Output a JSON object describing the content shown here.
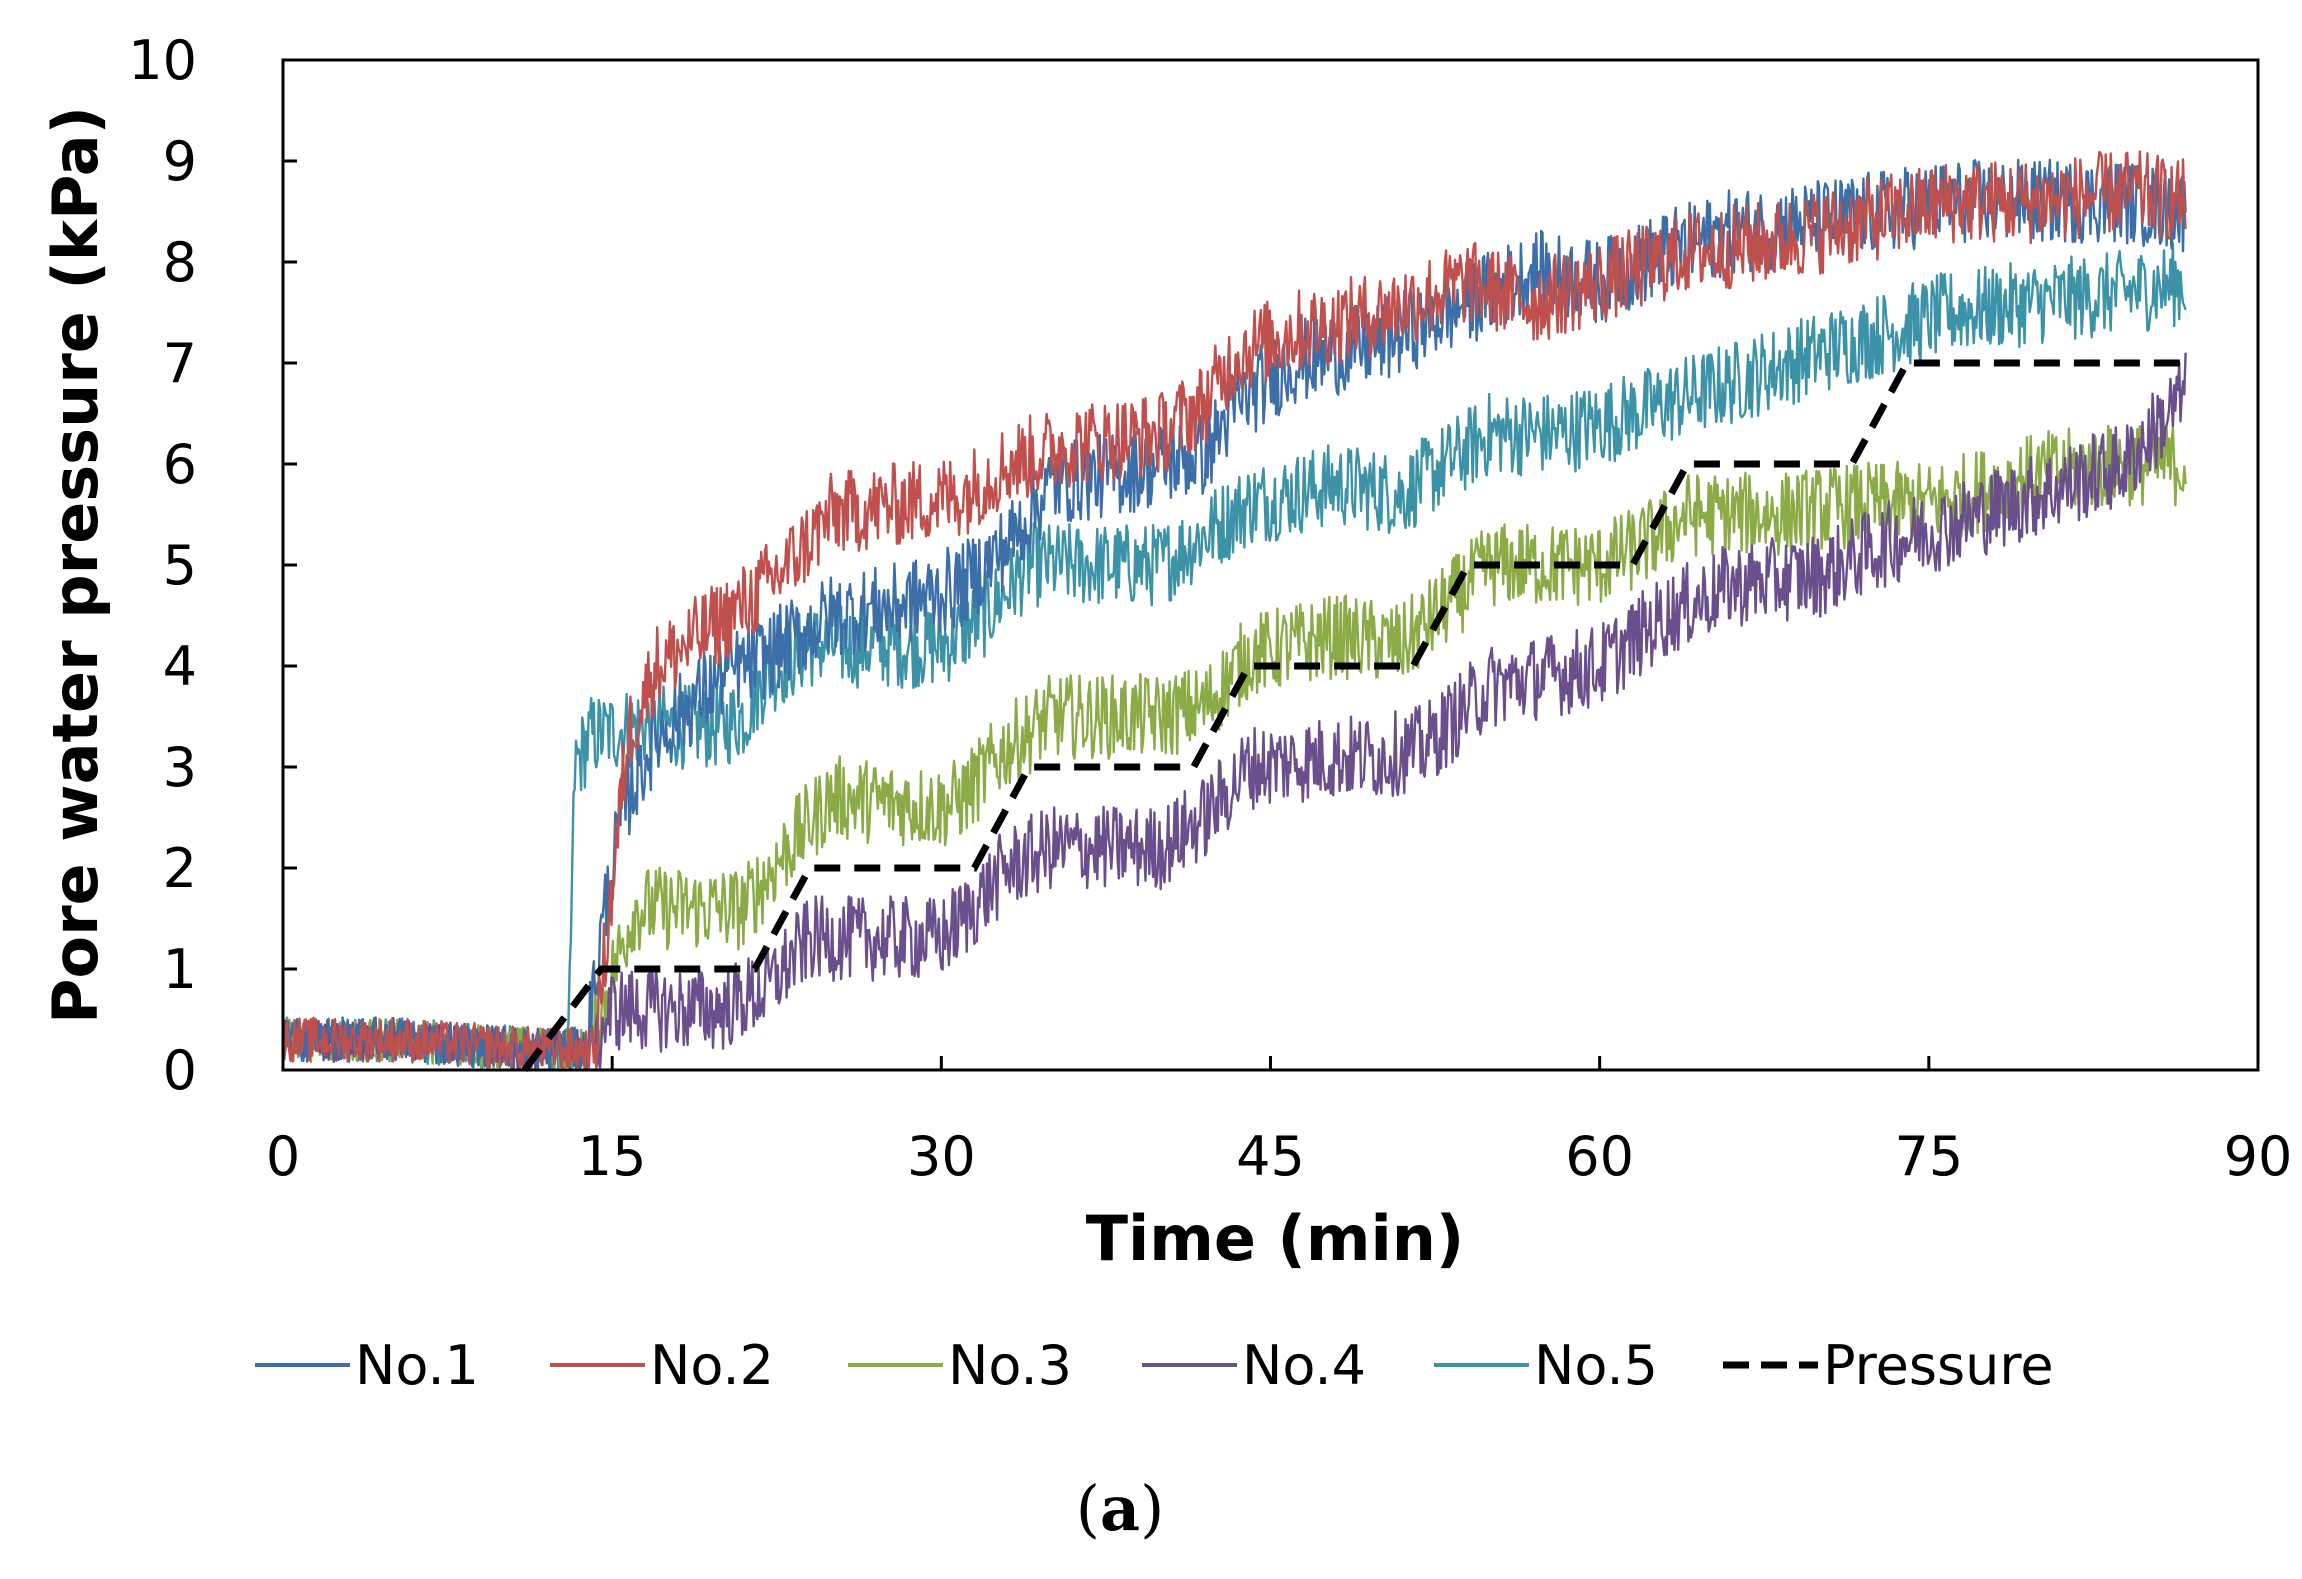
{
  "chart_data": {
    "type": "line",
    "xlabel": "Time (min)",
    "ylabel": "Pore water pressure (kPa)",
    "xlim": [
      0,
      90
    ],
    "ylim": [
      0,
      10
    ],
    "xticks": [
      "0",
      "15",
      "30",
      "45",
      "60",
      "75",
      "90"
    ],
    "yticks": [
      "0",
      "1",
      "2",
      "3",
      "4",
      "5",
      "6",
      "7",
      "8",
      "9",
      "10"
    ],
    "grid": false,
    "legend_position": "bottom",
    "series": [
      {
        "name": "No.1",
        "color": "#3c6ea8",
        "style": "solid",
        "x": [
          0,
          5,
          12,
          13.8,
          14.6,
          15.5,
          17,
          20,
          22,
          25,
          28,
          31,
          33,
          35,
          38,
          42,
          43.5,
          46,
          50,
          54,
          57,
          60,
          63,
          66,
          70,
          73,
          76,
          80,
          84,
          86.7
        ],
        "y": [
          0.3,
          0.3,
          0.2,
          0.2,
          1.5,
          2.6,
          3.3,
          3.9,
          4.1,
          4.5,
          4.6,
          4.8,
          5.2,
          5.8,
          5.9,
          6.1,
          6.6,
          7.0,
          7.2,
          7.6,
          7.9,
          7.8,
          8.1,
          8.3,
          8.4,
          8.5,
          8.6,
          8.6,
          8.6,
          8.5
        ]
      },
      {
        "name": "No.2",
        "color": "#c0504d",
        "style": "solid",
        "x": [
          0,
          5,
          12,
          14.2,
          15,
          15.7,
          17,
          19,
          21,
          23,
          25,
          28,
          31,
          33,
          36,
          40,
          42,
          43.5,
          46,
          50,
          54,
          57,
          60,
          64,
          68,
          72,
          76,
          80,
          84,
          86.7
        ],
        "y": [
          0.3,
          0.3,
          0.2,
          0.2,
          1.8,
          3.3,
          4.0,
          4.3,
          4.6,
          5.0,
          5.5,
          5.6,
          5.7,
          6.0,
          6.2,
          6.3,
          6.6,
          7.1,
          7.3,
          7.5,
          7.8,
          7.6,
          7.8,
          8.1,
          8.2,
          8.4,
          8.6,
          8.6,
          8.7,
          8.6
        ]
      },
      {
        "name": "No.3",
        "color": "#8aab46",
        "style": "solid",
        "x": [
          0,
          5,
          12,
          14,
          14.8,
          16,
          21,
          23,
          25,
          30,
          31,
          33,
          35,
          40,
          42,
          44,
          48,
          51,
          53,
          55,
          60,
          62,
          64,
          68,
          72,
          75,
          80,
          84,
          86.7
        ],
        "y": [
          0.3,
          0.3,
          0.2,
          0.2,
          0.8,
          1.6,
          1.6,
          2.2,
          2.7,
          2.6,
          2.7,
          3.2,
          3.5,
          3.5,
          3.6,
          4.1,
          4.3,
          4.2,
          4.6,
          5.0,
          5.0,
          5.2,
          5.5,
          5.5,
          5.6,
          5.6,
          5.9,
          6.0,
          6.0
        ]
      },
      {
        "name": "No.4",
        "color": "#6a4f8c",
        "style": "solid",
        "x": [
          0,
          5,
          12,
          14,
          15,
          20,
          22,
          24,
          30,
          31,
          33,
          35,
          40,
          42,
          44,
          48,
          50,
          52,
          55,
          60,
          63,
          66,
          70,
          73,
          76,
          80,
          84,
          86.7
        ],
        "y": [
          0.3,
          0.3,
          0.2,
          0.2,
          0.6,
          0.6,
          0.8,
          1.3,
          1.3,
          1.5,
          2.0,
          2.2,
          2.2,
          2.5,
          3.0,
          3.1,
          3.1,
          3.2,
          3.8,
          4.0,
          4.5,
          4.8,
          4.9,
          5.2,
          5.4,
          5.7,
          6.0,
          6.7
        ]
      },
      {
        "name": "No.5",
        "color": "#3c93a8",
        "style": "solid",
        "x": [
          0,
          5,
          12,
          13.0,
          13.3,
          14,
          16,
          20,
          21,
          22,
          24,
          27,
          30,
          32,
          34,
          36,
          40,
          42,
          44,
          48,
          51,
          53,
          55,
          58,
          60,
          63,
          66,
          70,
          73,
          76,
          80,
          84,
          86.7
        ],
        "y": [
          0.3,
          0.3,
          0.2,
          0.2,
          3.0,
          3.3,
          3.4,
          3.4,
          3.5,
          3.9,
          4.2,
          4.2,
          4.2,
          4.5,
          5.0,
          5.0,
          5.0,
          5.3,
          5.6,
          5.8,
          5.7,
          6.0,
          6.3,
          6.3,
          6.4,
          6.6,
          6.8,
          7.1,
          7.3,
          7.5,
          7.6,
          7.7,
          7.8
        ]
      },
      {
        "name": "Pressure",
        "color": "#000000",
        "style": "dashed",
        "x": [
          11,
          14.5,
          21.5,
          24,
          31.5,
          34,
          41.5,
          44,
          51.5,
          54,
          61.5,
          64,
          71.5,
          74,
          86.7
        ],
        "y": [
          0,
          1,
          1,
          2,
          2,
          3,
          3,
          4,
          4,
          5,
          5,
          6,
          6,
          7,
          7
        ]
      }
    ]
  },
  "caption": {
    "open": "(",
    "letter": "a",
    "close": ")"
  }
}
